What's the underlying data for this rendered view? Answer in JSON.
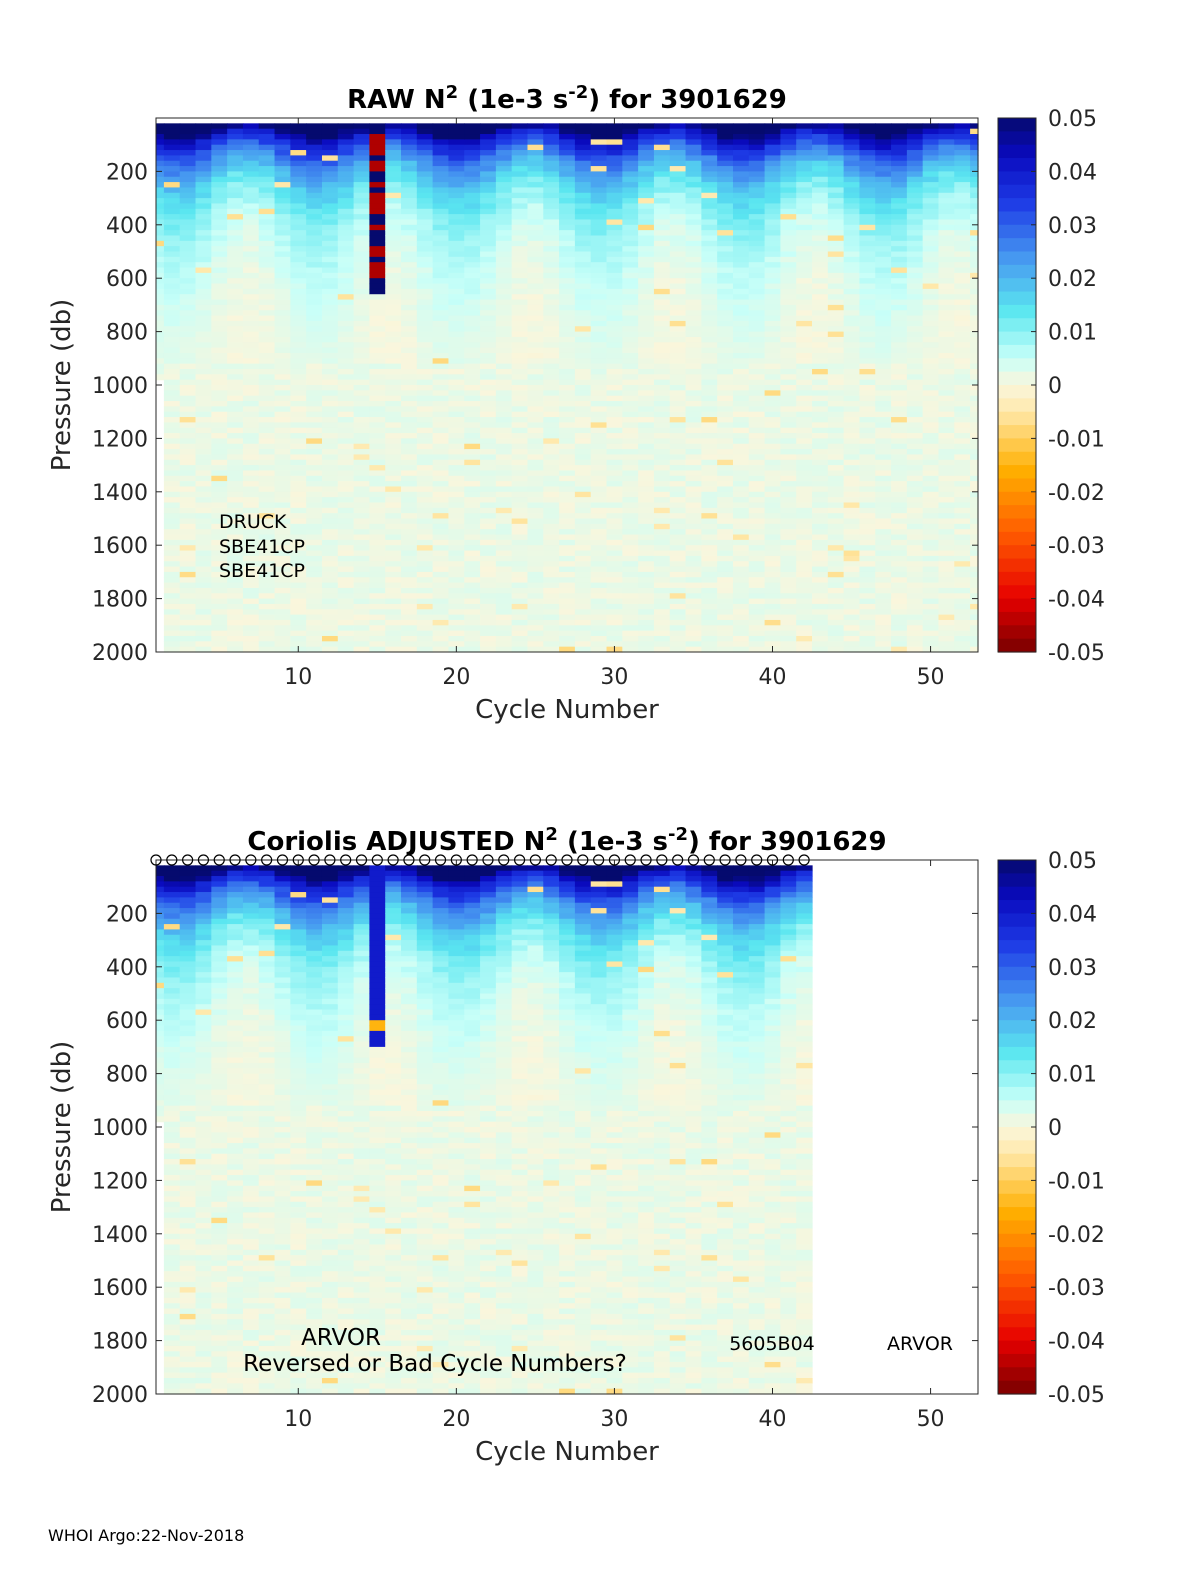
{
  "chart_data": [
    {
      "type": "heatmap",
      "title_parts": [
        "RAW N",
        "2",
        " (1e-3 s",
        "-2",
        ") for 3901629"
      ],
      "xlabel": "Cycle Number",
      "ylabel": "Pressure (db)",
      "xlim": [
        1,
        53
      ],
      "ylim": [
        2000,
        0
      ],
      "xticks": [
        10,
        20,
        30,
        40,
        50
      ],
      "yticks": [
        200,
        400,
        600,
        800,
        1000,
        1200,
        1400,
        1600,
        1800,
        2000
      ],
      "colorbar": {
        "min": -0.05,
        "max": 0.05,
        "ticks": [
          "0.05",
          "0.04",
          "0.03",
          "0.02",
          "0.01",
          "0",
          "-0.01",
          "-0.02",
          "-0.03",
          "-0.04",
          "-0.05"
        ]
      },
      "cycles_with_data": [
        1,
        53
      ],
      "annotations": [
        "DRUCK",
        "SBE41CP",
        "SBE41CP"
      ]
    },
    {
      "type": "heatmap",
      "title_parts": [
        "Coriolis  ADJUSTED N",
        "2",
        " (1e-3 s",
        "-2",
        ") for 3901629"
      ],
      "xlabel": "Cycle Number",
      "ylabel": "Pressure (db)",
      "xlim": [
        1,
        53
      ],
      "ylim": [
        2000,
        0
      ],
      "xticks": [
        10,
        20,
        30,
        40,
        50
      ],
      "yticks": [
        200,
        400,
        600,
        800,
        1000,
        1200,
        1400,
        1600,
        1800,
        2000
      ],
      "colorbar": {
        "min": -0.05,
        "max": 0.05,
        "ticks": [
          "0.05",
          "0.04",
          "0.03",
          "0.02",
          "0.01",
          "0",
          "-0.01",
          "-0.02",
          "-0.03",
          "-0.04",
          "-0.05"
        ]
      },
      "cycles_with_data": [
        1,
        42
      ],
      "cycle_markers": "o",
      "annotations": [
        "ARVOR",
        "Reversed or Bad Cycle Numbers?",
        "5605B04",
        "ARVOR"
      ]
    }
  ],
  "footer": "WHOI Argo:22-Nov-2018"
}
